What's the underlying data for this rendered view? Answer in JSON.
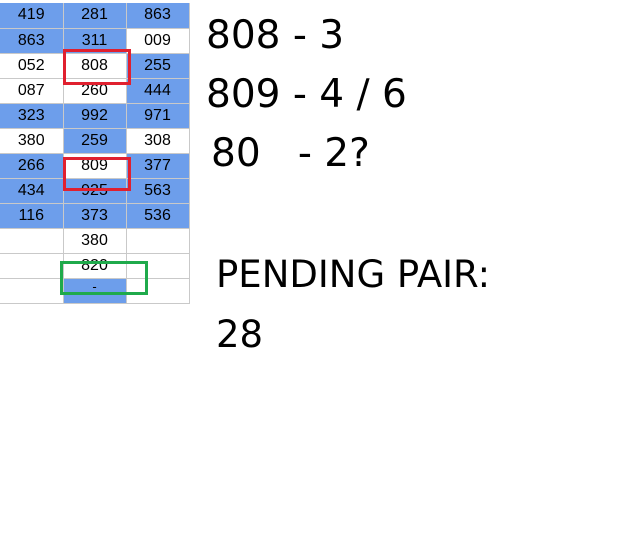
{
  "table": {
    "rows": [
      {
        "cells": [
          {
            "v": "419",
            "bg": "blue"
          },
          {
            "v": "281",
            "bg": "blue"
          },
          {
            "v": "863",
            "bg": "blue"
          }
        ]
      },
      {
        "cells": [
          {
            "v": "863",
            "bg": "blue"
          },
          {
            "v": "311",
            "bg": "blue"
          },
          {
            "v": "009",
            "bg": "white"
          }
        ]
      },
      {
        "cells": [
          {
            "v": "052",
            "bg": "white"
          },
          {
            "v": "808",
            "bg": "white"
          },
          {
            "v": "255",
            "bg": "blue"
          }
        ]
      },
      {
        "cells": [
          {
            "v": "087",
            "bg": "white"
          },
          {
            "v": "260",
            "bg": "white"
          },
          {
            "v": "444",
            "bg": "blue"
          }
        ]
      },
      {
        "cells": [
          {
            "v": "323",
            "bg": "blue"
          },
          {
            "v": "992",
            "bg": "blue"
          },
          {
            "v": "971",
            "bg": "blue"
          }
        ]
      },
      {
        "cells": [
          {
            "v": "380",
            "bg": "white"
          },
          {
            "v": "259",
            "bg": "blue"
          },
          {
            "v": "308",
            "bg": "white"
          }
        ]
      },
      {
        "cells": [
          {
            "v": "266",
            "bg": "blue"
          },
          {
            "v": "809",
            "bg": "white"
          },
          {
            "v": "377",
            "bg": "blue"
          }
        ]
      },
      {
        "cells": [
          {
            "v": "434",
            "bg": "blue"
          },
          {
            "v": "925",
            "bg": "blue"
          },
          {
            "v": "563",
            "bg": "blue"
          }
        ]
      },
      {
        "cells": [
          {
            "v": "116",
            "bg": "blue"
          },
          {
            "v": "373",
            "bg": "blue"
          },
          {
            "v": "536",
            "bg": "blue"
          }
        ]
      },
      {
        "cells": [
          {
            "v": "",
            "bg": "white"
          },
          {
            "v": "380",
            "bg": "white"
          },
          {
            "v": "",
            "bg": "white"
          }
        ]
      },
      {
        "cells": [
          {
            "v": "",
            "bg": "white"
          },
          {
            "v": "820",
            "bg": "white"
          },
          {
            "v": "",
            "bg": "white"
          }
        ]
      },
      {
        "cells": [
          {
            "v": "",
            "bg": "white"
          },
          {
            "v": "-",
            "bg": "blue"
          },
          {
            "v": "",
            "bg": "white"
          }
        ]
      }
    ]
  },
  "colors": {
    "cell_blue": "#6d9eeb",
    "highlight_red": "#e0202f",
    "highlight_green": "#1faa4b"
  },
  "notes": {
    "line1": "808 - 3",
    "line2": "809 - 4 / 6",
    "line3": "80   - 2?",
    "pending_label": "PENDING PAIR:",
    "pending_value": "28"
  }
}
